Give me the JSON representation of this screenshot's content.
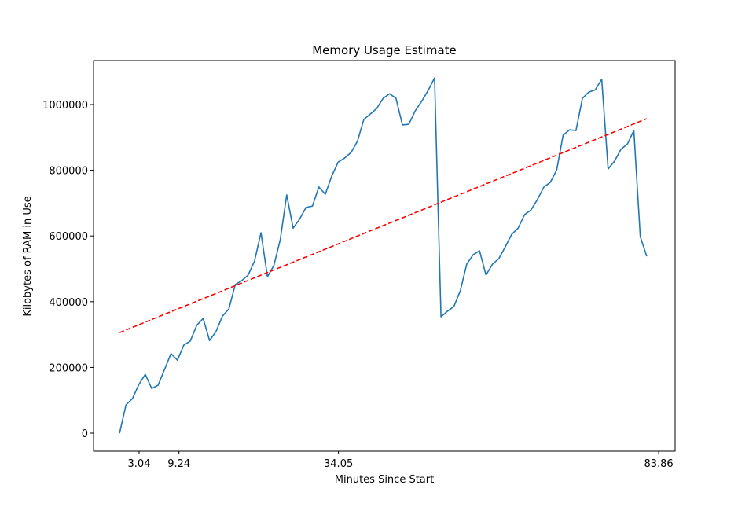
{
  "chart_data": {
    "type": "line",
    "title": "Memory Usage Estimate",
    "x_label": "Minutes Since Start",
    "y_label": "Kilobytes of RAM in Use",
    "xlim": [
      -4.05,
      86.42
    ],
    "ylim": [
      -55000,
      1134000
    ],
    "xticks": [
      3.04,
      9.24,
      34.05,
      83.86
    ],
    "yticks": [
      0,
      200000,
      400000,
      600000,
      800000,
      1000000
    ],
    "grid": false,
    "series": [
      {
        "color": "#1f77b4",
        "dash": false,
        "x": [
          0,
          1,
          2,
          3,
          4,
          5,
          6,
          7,
          8,
          9,
          10,
          11,
          12,
          13,
          14,
          15,
          16,
          17,
          18,
          19,
          20,
          21,
          22,
          23,
          24,
          25,
          26,
          27,
          28,
          29,
          30,
          31,
          32,
          33,
          34,
          35,
          36,
          37,
          38,
          39,
          40,
          41,
          42,
          43,
          44,
          45,
          46,
          47,
          48,
          49,
          50,
          51,
          52,
          53,
          54,
          55,
          56,
          57,
          58,
          59,
          60,
          61,
          62,
          63,
          64,
          65,
          66,
          67,
          68,
          69,
          70,
          71,
          72,
          73,
          74,
          75,
          76,
          77,
          78,
          79,
          80,
          81,
          82
        ],
        "values": [
          0,
          86000,
          105000,
          148000,
          179000,
          136000,
          146000,
          194000,
          242000,
          222000,
          268000,
          280000,
          328000,
          349000,
          282000,
          309000,
          356000,
          378000,
          452000,
          464000,
          481000,
          524000,
          610000,
          476000,
          510000,
          589000,
          725000,
          624000,
          651000,
          687000,
          691000,
          749000,
          727000,
          782000,
          825000,
          837000,
          854000,
          888000,
          955000,
          971000,
          988000,
          1019000,
          1033000,
          1019000,
          938000,
          940000,
          981000,
          1010000,
          1043000,
          1081000,
          354000,
          371000,
          385000,
          433000,
          514000,
          543000,
          555000,
          481000,
          514000,
          531000,
          567000,
          605000,
          624000,
          665000,
          679000,
          711000,
          749000,
          763000,
          801000,
          907000,
          923000,
          921000,
          1019000,
          1038000,
          1045000,
          1077000,
          804000,
          828000,
          864000,
          880000,
          921000,
          598000,
          538000
        ]
      },
      {
        "color": "#ff0000",
        "dash": true,
        "x": [
          0,
          82
        ],
        "values": [
          306000,
          957000
        ]
      }
    ]
  }
}
